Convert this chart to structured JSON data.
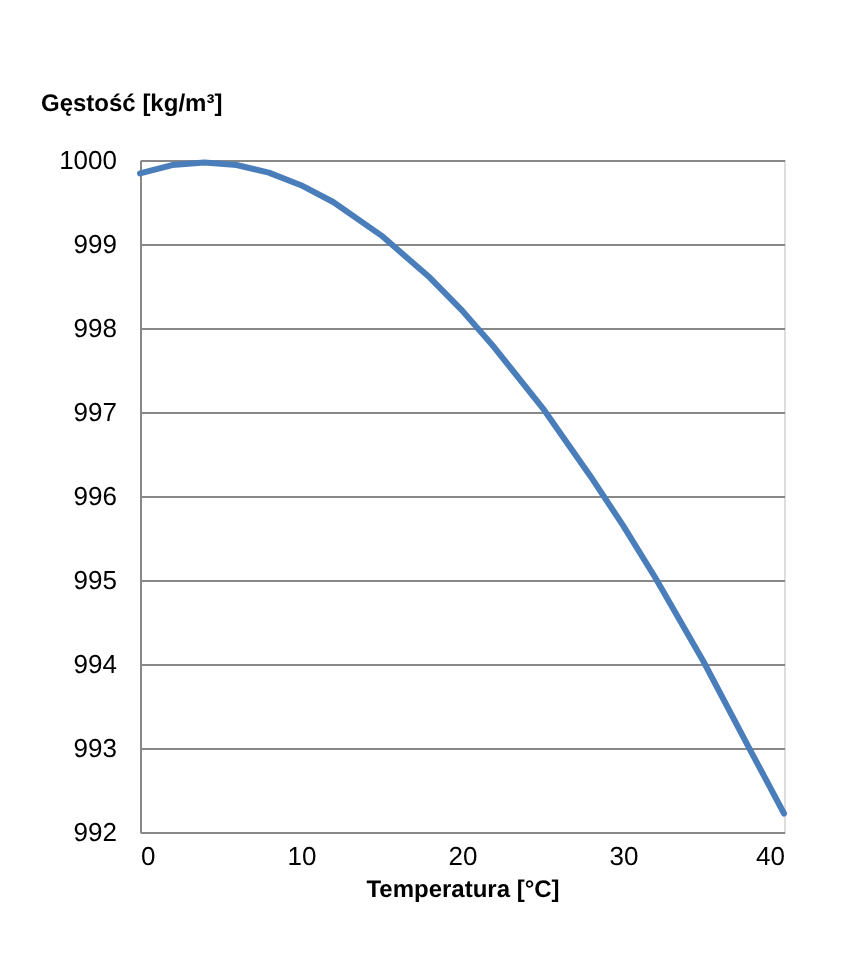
{
  "chart_data": {
    "type": "line",
    "xlabel": "Temperatura [°C]",
    "ylabel": "Gęstość [kg/m³]",
    "x": [
      0,
      2,
      4,
      6,
      8,
      10,
      12,
      15,
      18,
      20,
      22,
      25,
      28,
      30,
      32,
      35,
      38,
      40
    ],
    "series": [
      {
        "color": "#4a7ebb",
        "values": [
          999.84,
          999.94,
          999.97,
          999.94,
          999.85,
          999.7,
          999.5,
          999.1,
          998.6,
          998.21,
          997.77,
          997.05,
          996.23,
          995.65,
          995.03,
          994.03,
          992.94,
          992.22
        ]
      }
    ],
    "xlim": [
      0,
      40
    ],
    "xticks": [
      0,
      10,
      20,
      30,
      40
    ],
    "ylim": [
      992,
      1000
    ],
    "yticks": [
      992,
      993,
      994,
      995,
      996,
      997,
      998,
      999,
      1000
    ],
    "grid": "y",
    "marker": "none",
    "line_style": "solid"
  }
}
